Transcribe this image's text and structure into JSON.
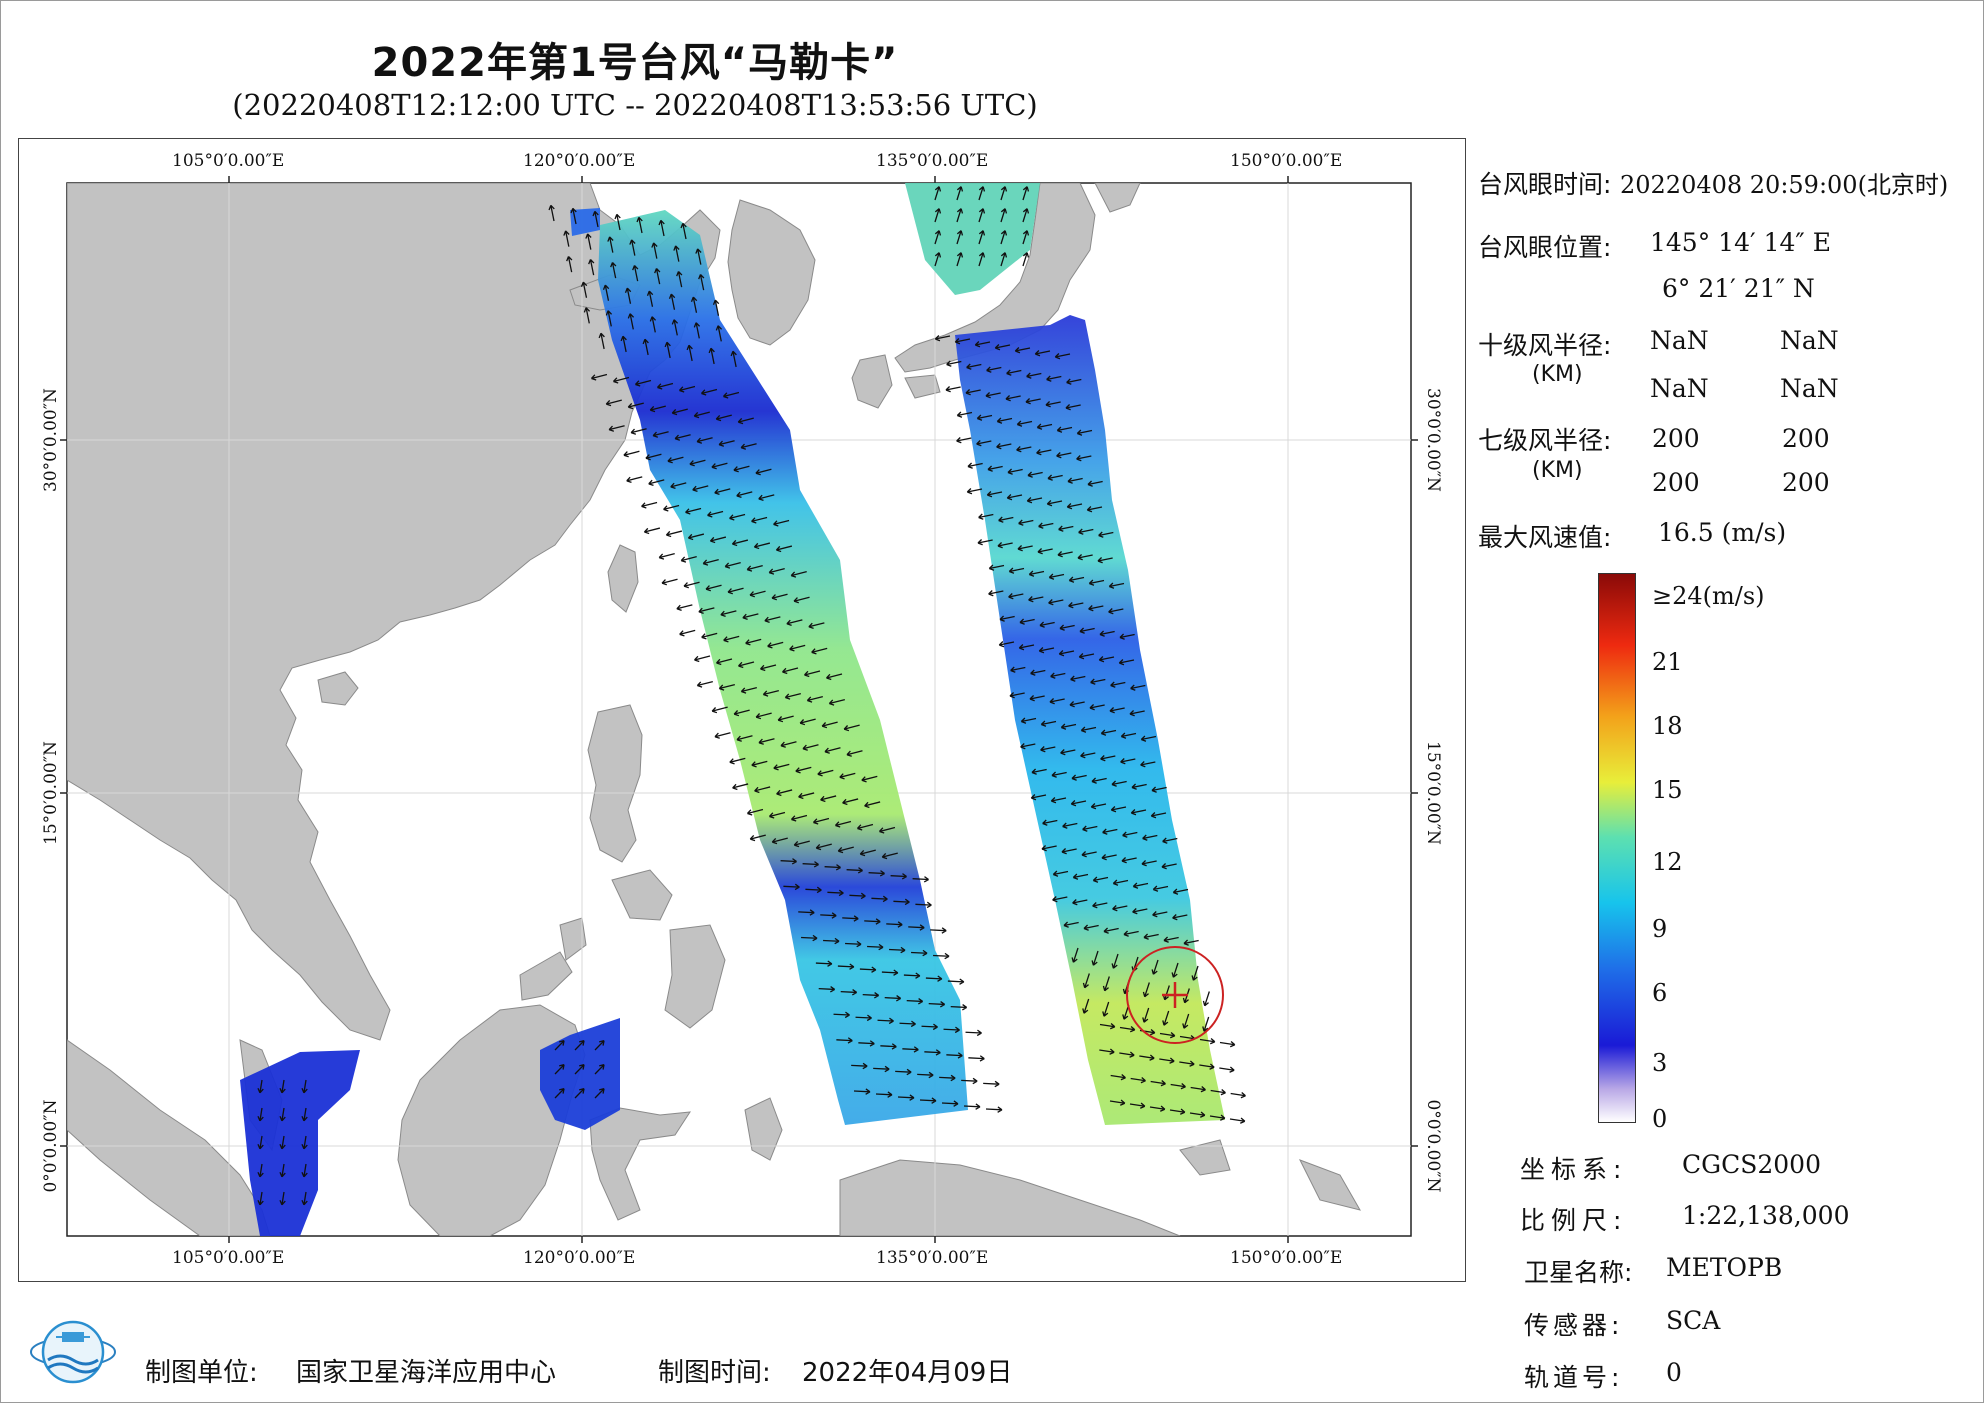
{
  "title": "2022年第1号台风“马勒卡”",
  "subtitle": "(20220408T12:12:00 UTC -- 20220408T13:53:56 UTC)",
  "map": {
    "lon_labels": [
      "105°0′0.00″E",
      "120°0′0.00″E",
      "135°0′0.00″E",
      "150°0′0.00″E"
    ],
    "lat_labels": [
      "30°0′0.00″N",
      "15°0′0.00″N",
      "0°0′0.00″N"
    ],
    "land_color": "#c2c2c2",
    "sea_color": "#ffffff",
    "typhoon_eye": {
      "lon": 145.24,
      "lat": 6.36
    },
    "wind_circle_color": "#cc2222"
  },
  "info": {
    "eye_time_label": "台风眼时间:",
    "eye_time_value": "20220408 20:59:00(北京时)",
    "eye_pos_label": "台风眼位置:",
    "eye_pos_lon": "145° 14′ 14″ E",
    "eye_pos_lat": "6° 21′ 21″ N",
    "r10_label": "十级风半径:",
    "r10_unit": "(KM)",
    "r10_values": [
      "NaN",
      "NaN",
      "NaN",
      "NaN"
    ],
    "r7_label": "七级风半径:",
    "r7_unit": "(KM)",
    "r7_values": [
      "200",
      "200",
      "200",
      "200"
    ],
    "max_wind_label": "最大风速值:",
    "max_wind_value": "16.5 (m/s)"
  },
  "colorbar": {
    "ticks": [
      "≥24(m/s)",
      "21",
      "18",
      "15",
      "12",
      "9",
      "6",
      "3",
      "0"
    ],
    "min": 0,
    "max": 24
  },
  "meta": {
    "crs_label": "坐标系:",
    "crs_value": "CGCS2000",
    "scale_label": "比例尺:",
    "scale_value": "1:22,138,000",
    "sat_label": "卫星名称:",
    "sat_value": "METOPB",
    "sensor_label": "传感器:",
    "sensor_value": "SCA",
    "orbit_label": "轨道号:",
    "orbit_value": "0"
  },
  "footer": {
    "unit_label": "制图单位:",
    "unit_value": "国家卫星海洋应用中心",
    "date_label": "制图时间:",
    "date_value": "2022年04月09日"
  }
}
